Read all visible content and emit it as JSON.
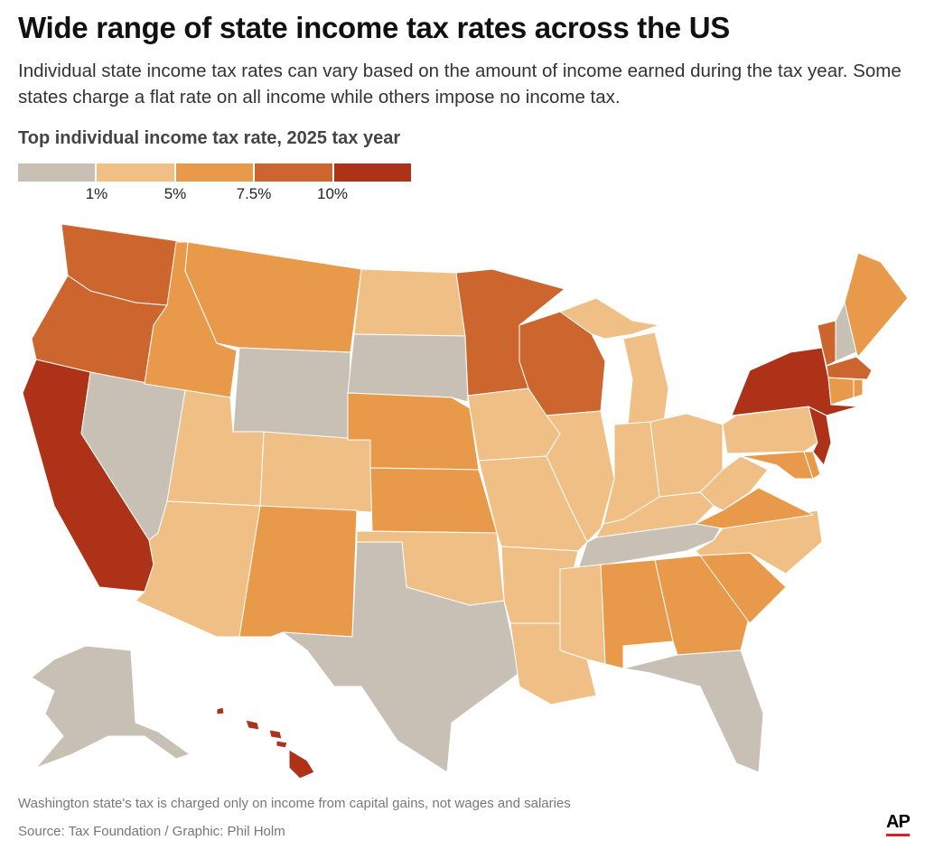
{
  "title": "Wide range of state income tax rates across the US",
  "subtitle": "Individual state income tax rates can vary based on the amount of income earned during the tax year. Some states charge a flat rate on all income while others impose no income tax.",
  "legend": {
    "title": "Top individual income tax rate, 2025 tax year",
    "colors": [
      "#c9c0b5",
      "#f0bf85",
      "#e8994a",
      "#cd652e",
      "#ad3218"
    ],
    "ticks": [
      "1%",
      "5%",
      "7.5%",
      "10%"
    ]
  },
  "map_data": {
    "type": "choropleth",
    "bins": [
      "under 1%",
      "1%–5%",
      "5%–7.5%",
      "7.5%–10%",
      "10% and above"
    ],
    "states": {
      "WA": 3,
      "OR": 3,
      "CA": 4,
      "NV": 0,
      "ID": 2,
      "MT": 2,
      "WY": 0,
      "UT": 1,
      "AZ": 1,
      "CO": 1,
      "NM": 2,
      "ND": 1,
      "SD": 0,
      "NE": 2,
      "KS": 2,
      "OK": 1,
      "TX": 0,
      "MN": 3,
      "IA": 1,
      "MO": 1,
      "AR": 1,
      "LA": 1,
      "WI": 3,
      "IL": 1,
      "MI": 1,
      "IN": 1,
      "OH": 1,
      "KY": 1,
      "TN": 0,
      "MS": 1,
      "AL": 2,
      "GA": 2,
      "FL": 0,
      "SC": 2,
      "NC": 1,
      "VA": 2,
      "WV": 1,
      "PA": 1,
      "MD": 2,
      "DE": 2,
      "NJ": 4,
      "NY": 4,
      "VT": 3,
      "NH": 0,
      "ME": 2,
      "MA": 3,
      "CT": 2,
      "RI": 2,
      "AK": 0,
      "HI": 4
    }
  },
  "footer": {
    "note": "Washington state's tax is charged only on income from capital gains, not wages and salaries",
    "source": "Source: Tax Foundation / Graphic: Phil Holm",
    "logo": "AP"
  }
}
